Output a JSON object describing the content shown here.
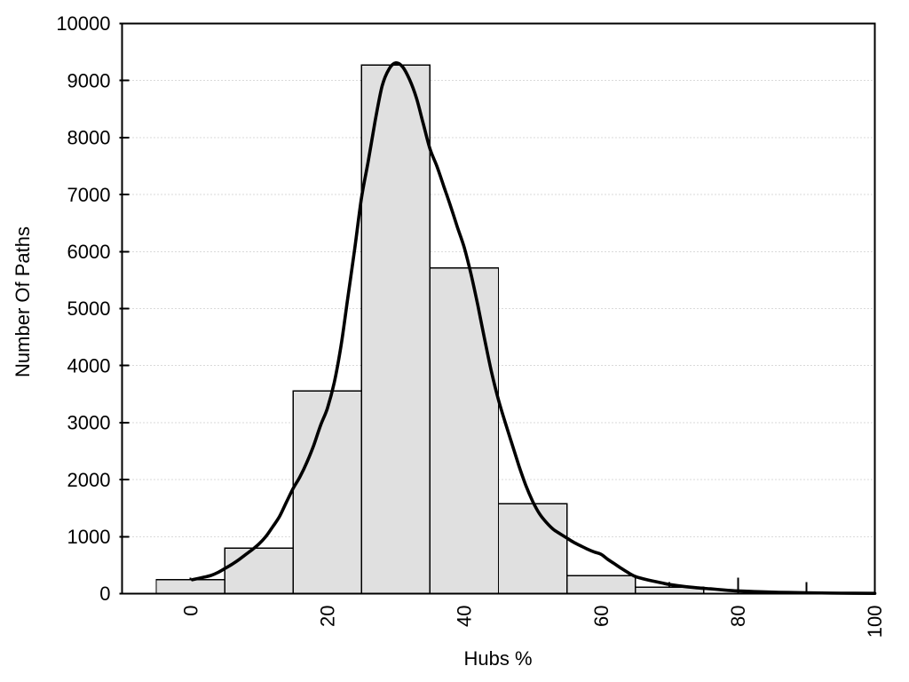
{
  "chart_data": {
    "type": "bar",
    "subtype": "histogram-with-fit-curve",
    "title": "",
    "xlabel": "Hubs %",
    "ylabel": "Number Of Paths",
    "xlim": [
      -10,
      100
    ],
    "ylim": [
      0,
      10000
    ],
    "x_major_ticks": [
      0,
      20,
      40,
      60,
      80,
      100
    ],
    "x_minor_ticks": [
      10,
      30,
      50,
      70,
      90
    ],
    "y_ticks": [
      0,
      1000,
      2000,
      3000,
      4000,
      5000,
      6000,
      7000,
      8000,
      9000,
      10000
    ],
    "x_tick_labels_rotated_deg": -90,
    "grid": "horizontal-dotted",
    "legend": "none",
    "bin_width": 10,
    "categories": [
      0,
      10,
      20,
      30,
      40,
      50,
      60,
      70
    ],
    "values": [
      245,
      800,
      3555,
      9270,
      5715,
      1575,
      315,
      115
    ],
    "series": [
      {
        "name": "histogram",
        "type": "bar",
        "x": [
          0,
          10,
          20,
          30,
          40,
          50,
          60,
          70
        ],
        "values": [
          245,
          800,
          3555,
          9270,
          5715,
          1575,
          315,
          115
        ]
      },
      {
        "name": "fit-curve",
        "type": "line",
        "x": [
          0.3,
          2,
          3,
          4,
          5,
          6,
          7,
          8,
          9,
          10,
          11,
          12,
          13,
          14,
          15,
          16,
          17,
          18,
          19,
          20,
          21,
          22,
          23,
          24,
          25,
          26,
          27,
          28,
          29,
          30,
          31,
          32,
          33,
          34,
          35,
          36,
          37,
          38,
          39,
          40,
          41,
          42,
          43,
          44,
          45,
          46,
          47,
          48,
          49,
          50,
          51,
          52,
          53,
          54,
          55,
          56,
          57,
          58,
          59,
          60,
          61,
          62,
          63,
          64,
          65,
          66,
          67,
          68,
          69,
          70,
          72,
          74,
          76,
          78,
          80,
          83,
          86,
          90,
          95,
          100
        ],
        "y": [
          245,
          290,
          320,
          370,
          440,
          510,
          590,
          680,
          770,
          870,
          1000,
          1170,
          1350,
          1600,
          1845,
          2050,
          2300,
          2600,
          2950,
          3250,
          3700,
          4350,
          5200,
          6050,
          6950,
          7600,
          8300,
          8900,
          9200,
          9310,
          9240,
          9020,
          8700,
          8250,
          7800,
          7500,
          7150,
          6800,
          6430,
          6070,
          5600,
          5050,
          4450,
          3880,
          3400,
          3000,
          2620,
          2240,
          1900,
          1620,
          1400,
          1250,
          1130,
          1050,
          975,
          900,
          840,
          780,
          730,
          690,
          600,
          520,
          440,
          365,
          300,
          265,
          235,
          210,
          185,
          160,
          128,
          103,
          84,
          64,
          48,
          34,
          24,
          15,
          8,
          5
        ]
      }
    ],
    "colors": {
      "background": "#ffffff",
      "bar_fill": "#e0e0e0",
      "bar_border": "#000000",
      "curve": "#000000",
      "grid": "#b5b5b5",
      "axis": "#000000",
      "text": "#000000"
    }
  }
}
